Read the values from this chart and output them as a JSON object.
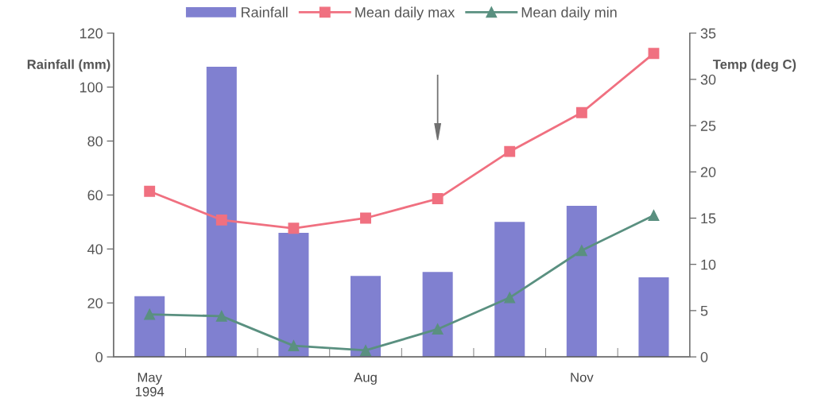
{
  "chart_data": {
    "type": "bar",
    "categories": [
      "May\n1994",
      null,
      null,
      "Aug",
      null,
      null,
      "Nov",
      null
    ],
    "series": [
      {
        "name": "Rainfall",
        "color": "#8080d0",
        "values": [
          22.5,
          107.5,
          46,
          30,
          31.5,
          50,
          56,
          29.5
        ]
      },
      {
        "name": "Mean daily max",
        "type": "line",
        "axis": "y2",
        "color": "#f07080",
        "marker": "square",
        "values": [
          17.9,
          14.8,
          13.9,
          15.0,
          17.1,
          22.2,
          26.4,
          32.8
        ]
      },
      {
        "name": "Mean daily min",
        "type": "line",
        "axis": "y2",
        "color": "#5a9080",
        "marker": "triangle",
        "values": [
          4.6,
          4.4,
          1.2,
          0.7,
          3.0,
          6.4,
          11.5,
          15.3
        ]
      }
    ],
    "ylabel": "Rainfall (mm)",
    "y2label": "Temp (deg C)",
    "ylim": [
      0,
      120
    ],
    "yticks": [
      0,
      20,
      40,
      60,
      80,
      100,
      120
    ],
    "y2lim": [
      0,
      35
    ],
    "y2ticks": [
      0,
      5,
      10,
      15,
      20,
      25,
      30,
      35
    ],
    "legend": "top",
    "grid": false
  }
}
